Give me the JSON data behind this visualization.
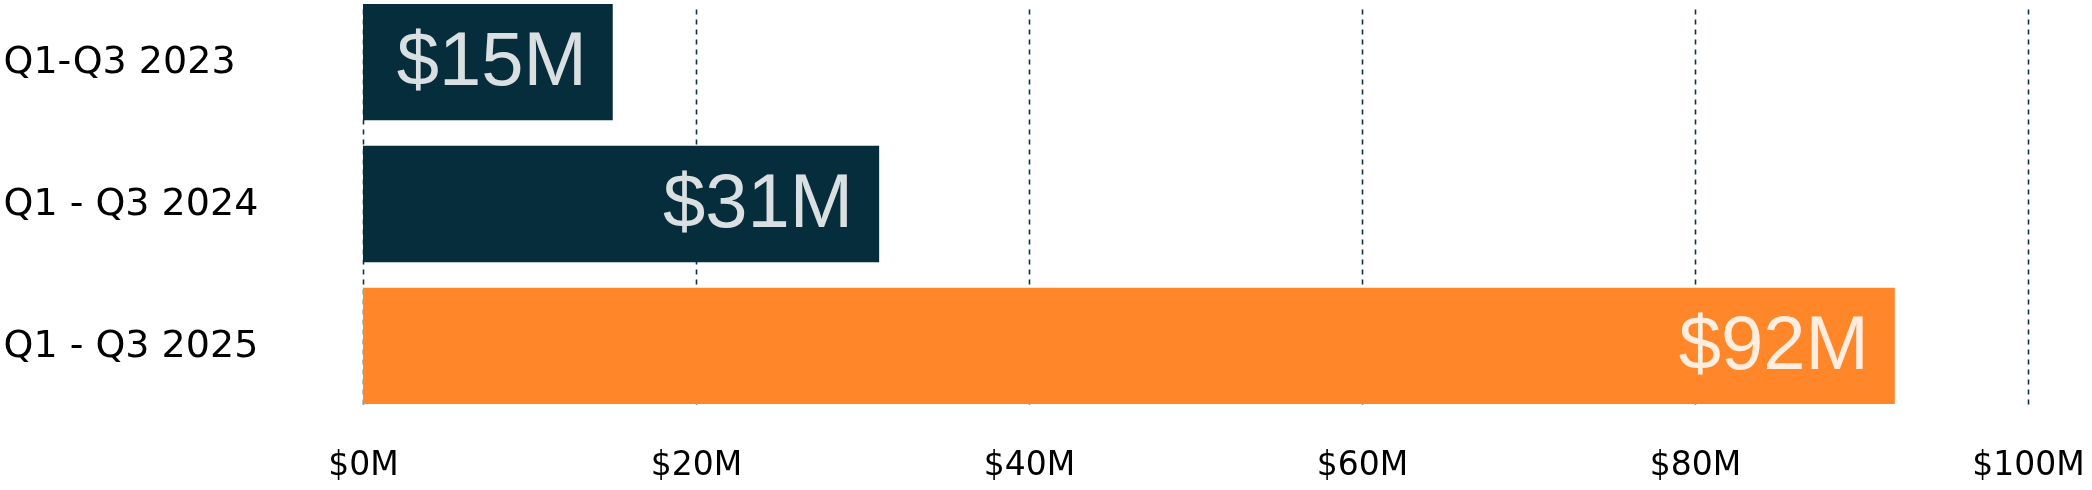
{
  "chart_data": {
    "type": "bar",
    "orientation": "horizontal",
    "categories": [
      "Q1-Q3 2023",
      "Q1 - Q3 2024",
      "Q1 - Q3 2025"
    ],
    "values": [
      15,
      31,
      92
    ],
    "colors": [
      "#062d3b",
      "#062d3b",
      "#ff8729"
    ],
    "value_labels": [
      "$15M",
      "$31M",
      "$92M"
    ],
    "xlim": [
      0,
      100
    ],
    "xticks": [
      {
        "value": 0,
        "label": "$0M"
      },
      {
        "value": 20,
        "label": "$20M"
      },
      {
        "value": 40,
        "label": "$40M"
      },
      {
        "value": 60,
        "label": "$60M"
      },
      {
        "value": 80,
        "label": "$80M"
      },
      {
        "value": 100,
        "label": "$100M"
      }
    ],
    "grid": "x"
  }
}
